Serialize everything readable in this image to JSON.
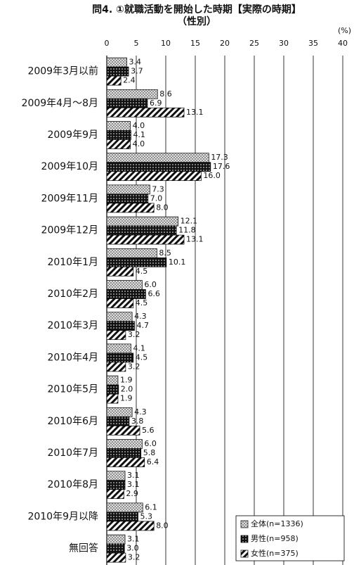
{
  "chart_data": {
    "type": "hbar",
    "title": "問4. ①就職活動を開始した時期【実際の時期】",
    "subtitle": "（性別）",
    "unit_label": "(%)",
    "categories": [
      "2009年3月以前",
      "2009年4月～8月",
      "2009年9月",
      "2009年10月",
      "2009年11月",
      "2009年12月",
      "2010年1月",
      "2010年2月",
      "2010年3月",
      "2010年4月",
      "2010年5月",
      "2010年6月",
      "2010年7月",
      "2010年8月",
      "2010年9月以降",
      "無回答"
    ],
    "series": [
      {
        "name": "全体(n=1336)",
        "color": "#888888",
        "pattern": "crosshatch",
        "values": [
          3.4,
          8.6,
          4.0,
          17.3,
          7.3,
          12.1,
          8.5,
          6.0,
          4.3,
          4.1,
          1.9,
          4.3,
          6.0,
          3.1,
          6.1,
          3.1
        ],
        "value_labels": [
          "3.4",
          "8.6",
          "4.0",
          "17.3",
          "7.3",
          "12.1",
          "8.5",
          "6.0",
          "4.3",
          "4.1",
          "1.9",
          "4.3",
          "6.0",
          "3.1",
          "6.1",
          "3.1"
        ]
      },
      {
        "name": "男性(n=958)",
        "color": "#111111",
        "pattern": "dots",
        "values": [
          3.7,
          6.9,
          4.1,
          17.6,
          7.0,
          11.8,
          10.1,
          6.6,
          4.7,
          4.5,
          2.0,
          3.8,
          5.8,
          3.1,
          5.3,
          3.0
        ],
        "value_labels": [
          "3.7",
          "6.9",
          "4.1",
          "17.6",
          "7.0",
          "11.8",
          "10.1",
          "6.6",
          "4.7",
          "4.5",
          "2.0",
          "3.8",
          "5.8",
          "3.1",
          "5.3",
          "3.0"
        ]
      },
      {
        "name": "女性(n=375)",
        "color": "#111111",
        "pattern": "stripes",
        "values": [
          2.4,
          13.1,
          4.0,
          16.0,
          8.0,
          13.1,
          4.5,
          4.5,
          3.2,
          3.2,
          1.9,
          5.6,
          6.4,
          2.9,
          8.0,
          3.2
        ],
        "value_labels": [
          "2.4",
          "13.1",
          "4.0",
          "16.0",
          "8.0",
          "13.1",
          "4.5",
          "4.5",
          "3.2",
          "3.2",
          "1.9",
          "5.6",
          "6.4",
          "2.9",
          "8.0",
          "3.2"
        ]
      }
    ],
    "xlim": [
      0,
      40
    ],
    "xticks": [
      0,
      5,
      10,
      15,
      20,
      25,
      30,
      35,
      40
    ],
    "grid": true,
    "legend": "lower right"
  }
}
